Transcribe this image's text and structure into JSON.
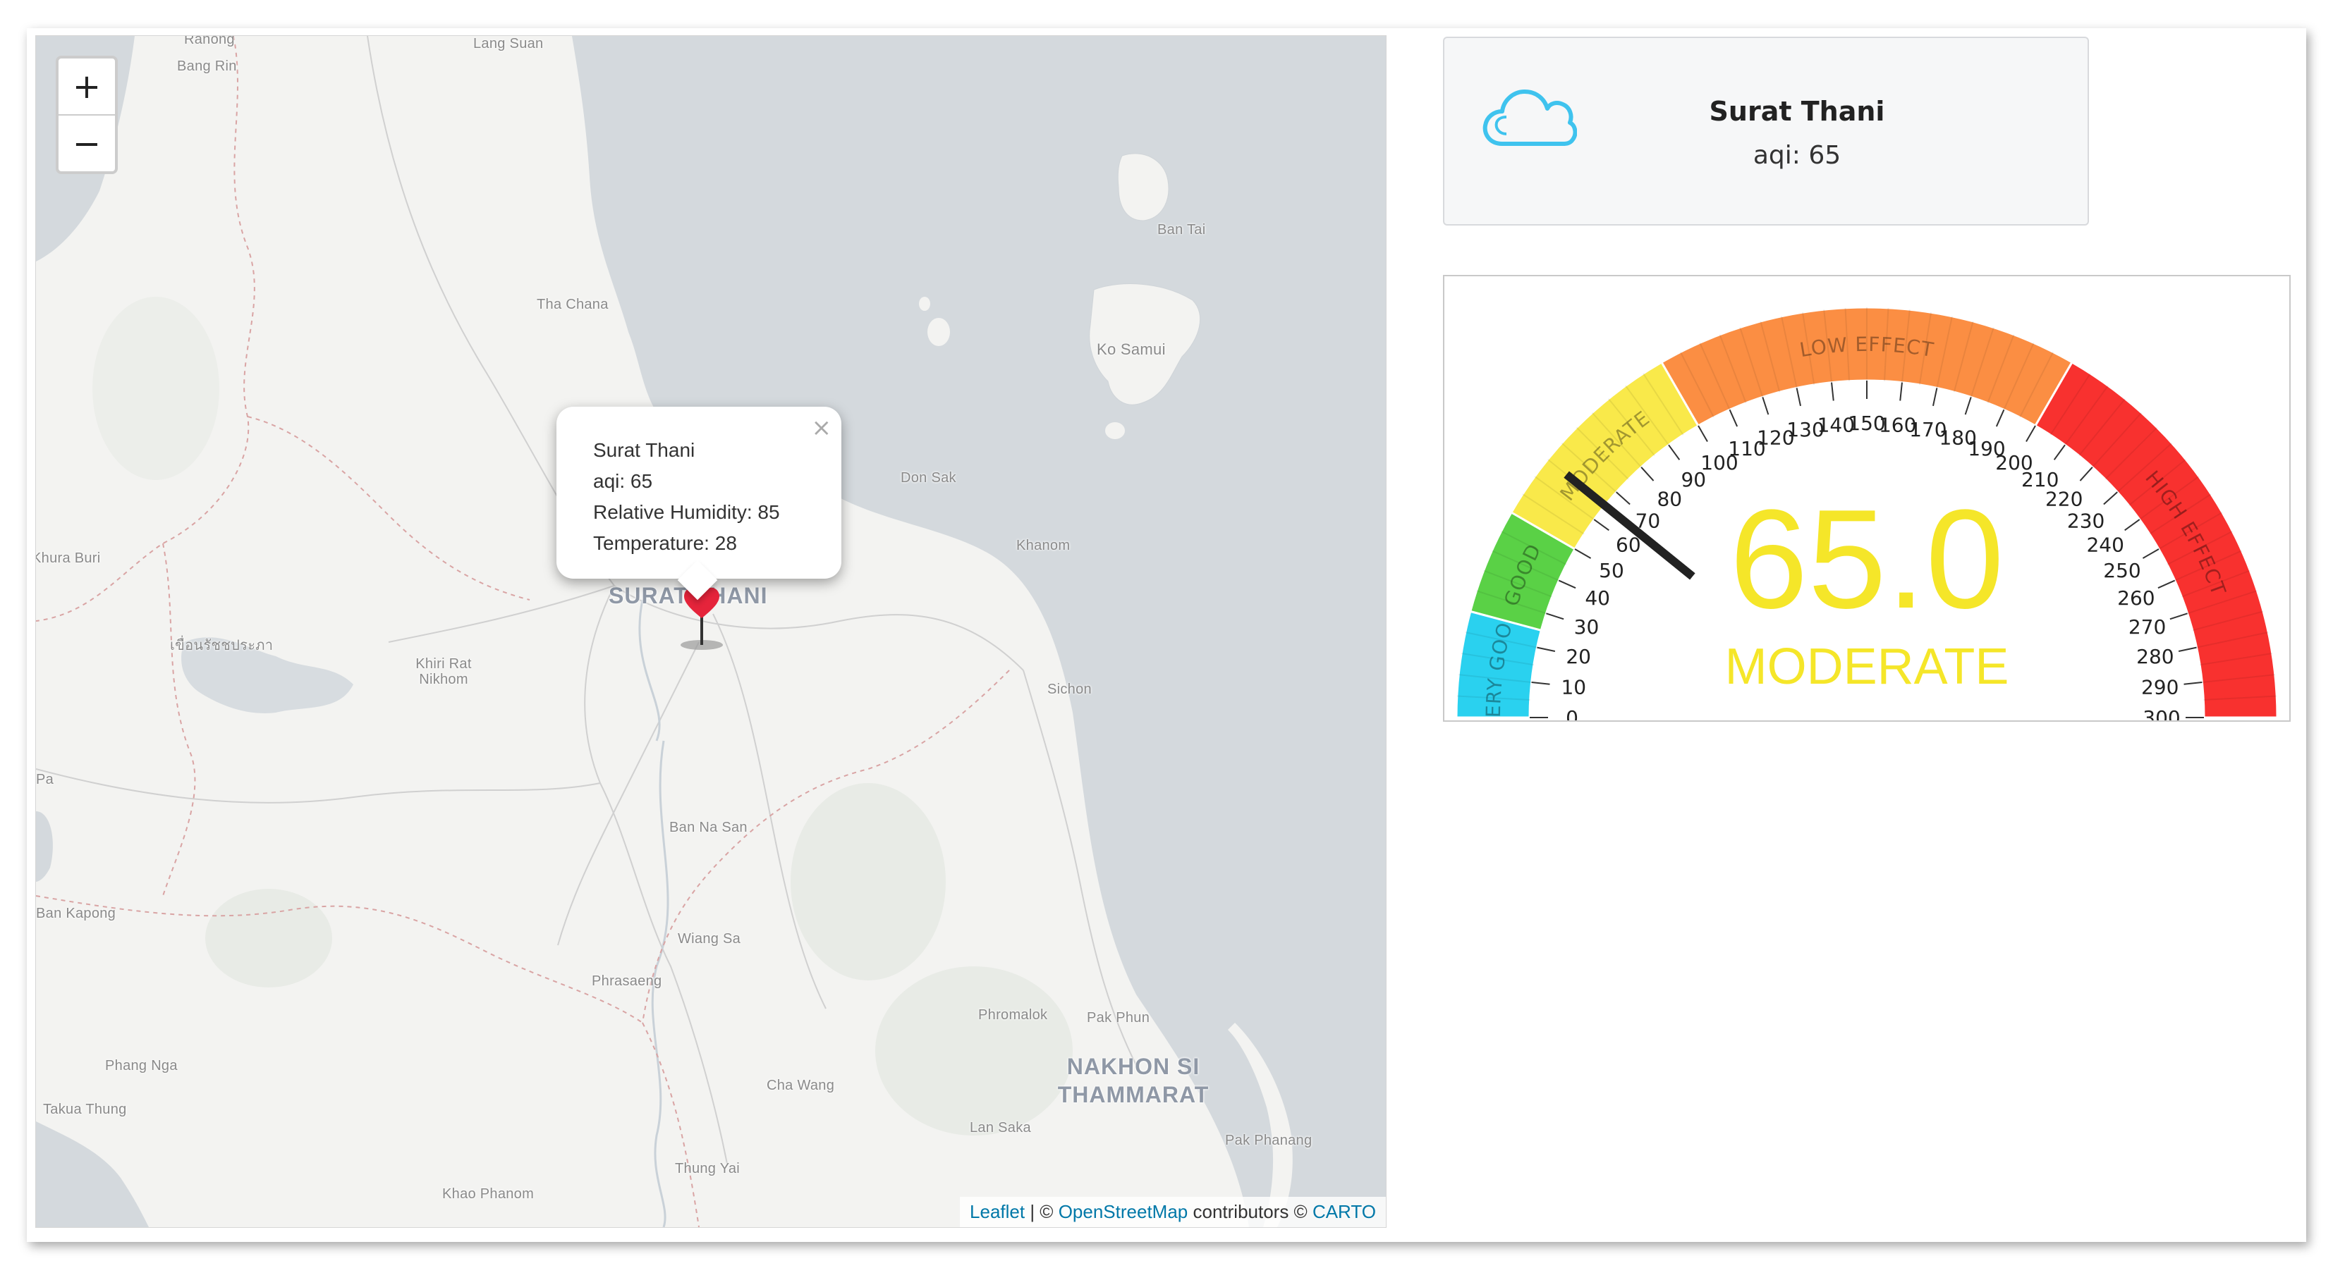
{
  "map": {
    "zoom_in_label": "+",
    "zoom_out_label": "−",
    "places": [
      {
        "name": "Ranong"
      },
      {
        "name": "Bang Rin"
      },
      {
        "name": "Lang Suan"
      },
      {
        "name": "Ban Tai"
      },
      {
        "name": "Tha Chana"
      },
      {
        "name": "Ko Samui"
      },
      {
        "name": "Don Sak"
      },
      {
        "name": "Khanom"
      },
      {
        "name": "Khura Buri"
      },
      {
        "name": "เขื่อนรัชชประภา"
      },
      {
        "name": "Khiri Rat Nikhom"
      },
      {
        "name": "SURAT THANI"
      },
      {
        "name": "Sichon"
      },
      {
        "name": "Pa"
      },
      {
        "name": "Ban Na San"
      },
      {
        "name": "Ban Kapong"
      },
      {
        "name": "Wiang Sa"
      },
      {
        "name": "Phrasaeng"
      },
      {
        "name": "Phromalok"
      },
      {
        "name": "Pak Phun"
      },
      {
        "name": "Phang Nga"
      },
      {
        "name": "NAKHON SI THAMMARAT"
      },
      {
        "name": "Takua Thung"
      },
      {
        "name": "Cha Wang"
      },
      {
        "name": "Lan Saka"
      },
      {
        "name": "Pak Phanang"
      },
      {
        "name": "Thung Yai"
      },
      {
        "name": "Khao Phanom"
      }
    ],
    "popup": {
      "close_label": "×",
      "lines": [
        "Surat Thani",
        "aqi: 65",
        "Relative Humidity: 85",
        "Temperature: 28"
      ]
    },
    "attribution": {
      "leaflet": "Leaflet",
      "sep1": " | © ",
      "osm": "OpenStreetMap",
      "contrib": " contributors © ",
      "carto": "CARTO"
    }
  },
  "station": {
    "icon": "cloud-icon",
    "name": "Surat Thani",
    "aqi_text": "aqi: 65"
  },
  "gauge": {
    "value": 65,
    "min": 0,
    "max": 300,
    "value_text": "65.0",
    "status_text": "MODERATE",
    "value_color": "#f5e629",
    "needle_color": "#222222",
    "ticks": [
      "0",
      "10",
      "20",
      "30",
      "40",
      "50",
      "60",
      "70",
      "80",
      "90",
      "100",
      "110",
      "120",
      "130",
      "140",
      "150",
      "160",
      "170",
      "180",
      "190",
      "200",
      "210",
      "220",
      "230",
      "240",
      "250",
      "260",
      "270",
      "280",
      "290",
      "300"
    ],
    "bands": [
      {
        "label": "VERY GOOD",
        "from": 0,
        "to": 25,
        "color": "#2ad1ef"
      },
      {
        "label": "GOOD",
        "from": 25,
        "to": 50,
        "color": "#5ad146"
      },
      {
        "label": "MODERATE",
        "from": 50,
        "to": 100,
        "color": "#f9e94a"
      },
      {
        "label": "LOW EFFECT",
        "from": 100,
        "to": 200,
        "color": "#fb8e43"
      },
      {
        "label": "HIGH EFFECT",
        "from": 200,
        "to": 300,
        "color": "#f8312f"
      }
    ]
  }
}
